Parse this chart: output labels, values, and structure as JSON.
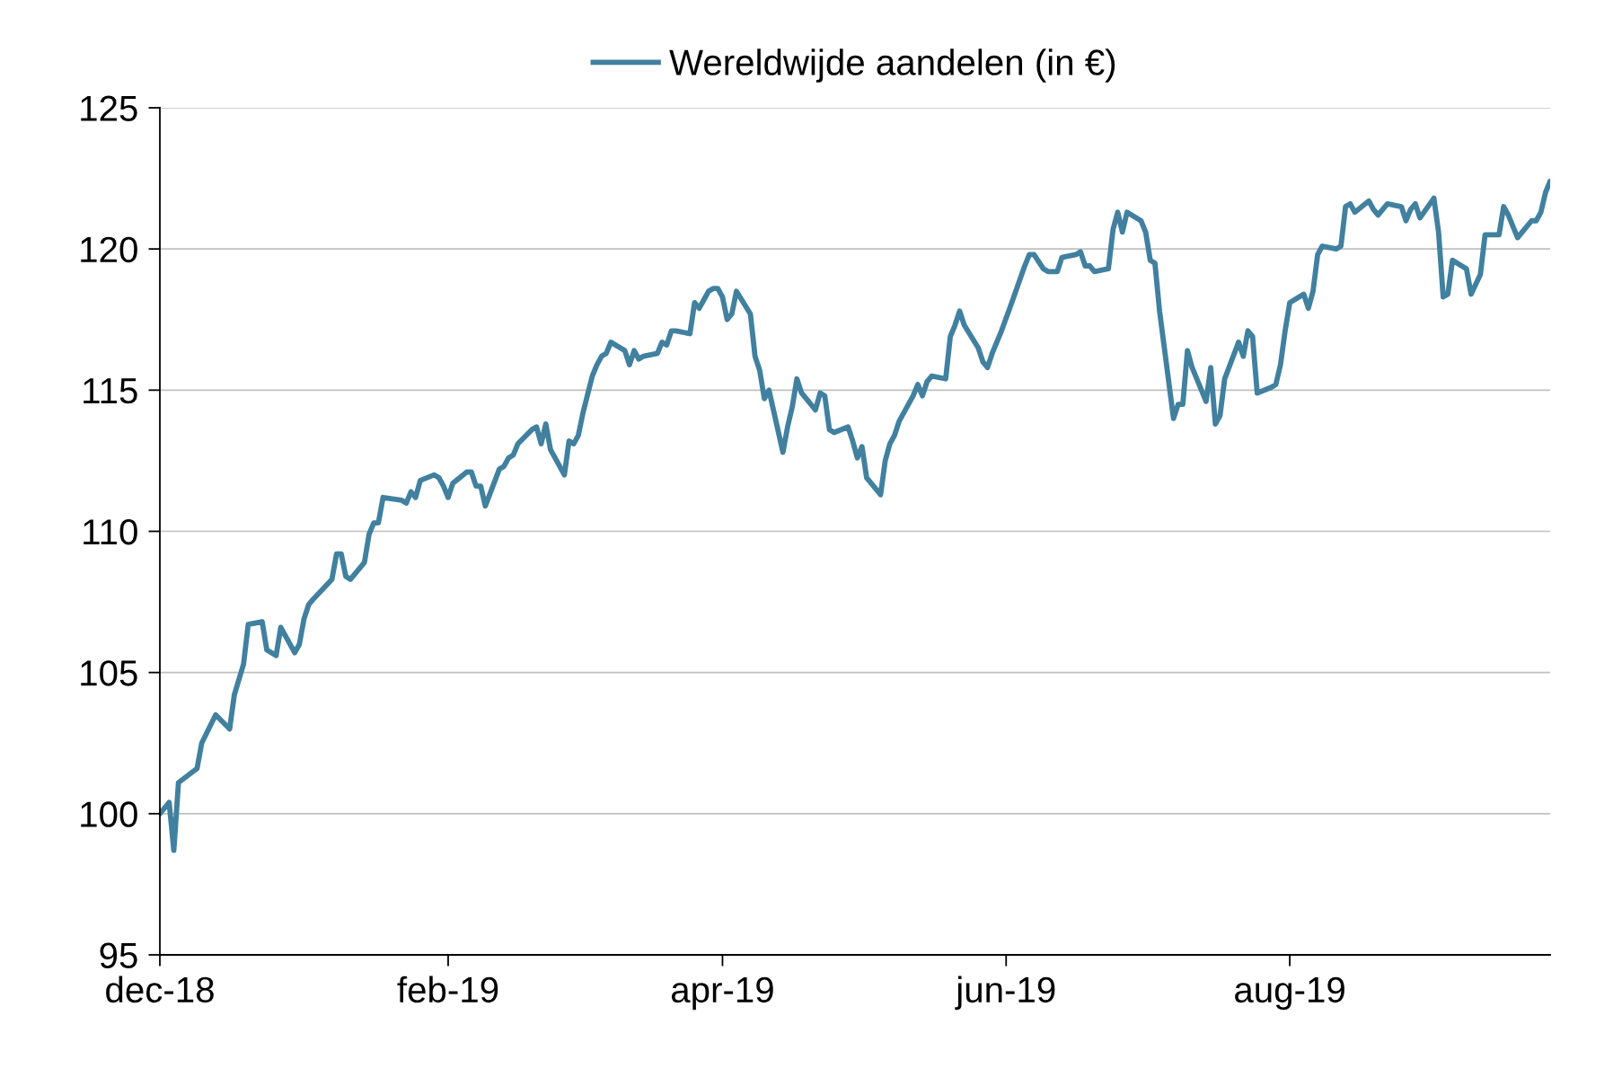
{
  "chart_data": {
    "type": "line",
    "legend": "top",
    "grid": "y",
    "marker": "none",
    "line_style": "solid",
    "xlim": [
      "2018-12-01",
      "2019-09-26"
    ],
    "ylim": [
      95,
      125
    ],
    "yticks": [
      95,
      100,
      105,
      110,
      115,
      120,
      125
    ],
    "xticks": [
      {
        "value": "2018-12-01",
        "label": "dec-18"
      },
      {
        "value": "2019-02-01",
        "label": "feb-19"
      },
      {
        "value": "2019-04-01",
        "label": "apr-19"
      },
      {
        "value": "2019-06-01",
        "label": "jun-19"
      },
      {
        "value": "2019-08-01",
        "label": "aug-19"
      }
    ],
    "x": [
      "2018-12-01",
      "2018-12-03",
      "2018-12-04",
      "2018-12-05",
      "2018-12-09",
      "2018-12-10",
      "2018-12-13",
      "2018-12-16",
      "2018-12-17",
      "2018-12-19",
      "2018-12-20",
      "2018-12-23",
      "2018-12-24",
      "2018-12-26",
      "2018-12-27",
      "2018-12-30",
      "2018-12-31",
      "2019-01-01",
      "2019-01-02",
      "2019-01-03",
      "2019-01-07",
      "2019-01-08",
      "2019-01-09",
      "2019-01-10",
      "2019-01-11",
      "2019-01-14",
      "2019-01-15",
      "2019-01-16",
      "2019-01-17",
      "2019-01-18",
      "2019-01-22",
      "2019-01-23",
      "2019-01-24",
      "2019-01-25",
      "2019-01-26",
      "2019-01-29",
      "2019-01-30",
      "2019-01-31",
      "2019-02-01",
      "2019-02-02",
      "2019-02-05",
      "2019-02-06",
      "2019-02-07",
      "2019-02-08",
      "2019-02-09",
      "2019-02-12",
      "2019-02-13",
      "2019-02-14",
      "2019-02-15",
      "2019-02-16",
      "2019-02-19",
      "2019-02-20",
      "2019-02-21",
      "2019-02-22",
      "2019-02-23",
      "2019-02-26",
      "2019-02-27",
      "2019-02-28",
      "2019-03-01",
      "2019-03-02",
      "2019-03-04",
      "2019-03-05",
      "2019-03-06",
      "2019-03-07",
      "2019-03-08",
      "2019-03-11",
      "2019-03-12",
      "2019-03-13",
      "2019-03-14",
      "2019-03-15",
      "2019-03-18",
      "2019-03-19",
      "2019-03-20",
      "2019-03-21",
      "2019-03-22",
      "2019-03-25",
      "2019-03-26",
      "2019-03-27",
      "2019-03-28",
      "2019-03-29",
      "2019-03-30",
      "2019-03-31",
      "2019-04-01",
      "2019-04-02",
      "2019-04-03",
      "2019-04-04",
      "2019-04-07",
      "2019-04-08",
      "2019-04-09",
      "2019-04-10",
      "2019-04-11",
      "2019-04-14",
      "2019-04-15",
      "2019-04-16",
      "2019-04-17",
      "2019-04-18",
      "2019-04-21",
      "2019-04-22",
      "2019-04-23",
      "2019-04-24",
      "2019-04-25",
      "2019-04-28",
      "2019-04-29",
      "2019-04-30",
      "2019-05-01",
      "2019-05-02",
      "2019-05-05",
      "2019-05-06",
      "2019-05-07",
      "2019-05-08",
      "2019-05-09",
      "2019-05-12",
      "2019-05-13",
      "2019-05-14",
      "2019-05-15",
      "2019-05-16",
      "2019-05-19",
      "2019-05-20",
      "2019-05-21",
      "2019-05-22",
      "2019-05-23",
      "2019-05-26",
      "2019-05-27",
      "2019-05-28",
      "2019-05-29",
      "2019-05-30",
      "2019-05-31",
      "2019-06-02",
      "2019-06-05",
      "2019-06-06",
      "2019-06-07",
      "2019-06-09",
      "2019-06-10",
      "2019-06-12",
      "2019-06-13",
      "2019-06-16",
      "2019-06-17",
      "2019-06-18",
      "2019-06-19",
      "2019-06-20",
      "2019-06-23",
      "2019-06-24",
      "2019-06-25",
      "2019-06-26",
      "2019-06-27",
      "2019-06-30",
      "2019-07-01",
      "2019-07-02",
      "2019-07-03",
      "2019-07-04",
      "2019-07-07",
      "2019-07-08",
      "2019-07-09",
      "2019-07-10",
      "2019-07-11",
      "2019-07-14",
      "2019-07-15",
      "2019-07-16",
      "2019-07-17",
      "2019-07-18",
      "2019-07-21",
      "2019-07-22",
      "2019-07-23",
      "2019-07-24",
      "2019-07-25",
      "2019-07-28",
      "2019-07-29",
      "2019-07-30",
      "2019-07-31",
      "2019-08-01",
      "2019-08-02",
      "2019-08-04",
      "2019-08-05",
      "2019-08-06",
      "2019-08-07",
      "2019-08-08",
      "2019-08-11",
      "2019-08-12",
      "2019-08-13",
      "2019-08-14",
      "2019-08-15",
      "2019-08-18",
      "2019-08-19",
      "2019-08-20",
      "2019-08-21",
      "2019-08-22",
      "2019-08-25",
      "2019-08-26",
      "2019-08-27",
      "2019-08-28",
      "2019-08-29",
      "2019-09-01",
      "2019-09-02",
      "2019-09-03",
      "2019-09-04",
      "2019-09-05",
      "2019-09-08",
      "2019-09-09",
      "2019-09-11",
      "2019-09-12",
      "2019-09-15",
      "2019-09-16",
      "2019-09-17",
      "2019-09-19",
      "2019-09-22",
      "2019-09-23",
      "2019-09-24",
      "2019-09-25",
      "2019-09-26"
    ],
    "series": [
      {
        "name": "Wereldwijde aandelen (in €)",
        "color": "#41809f",
        "values": [
          100.0,
          100.4,
          98.7,
          101.1,
          101.6,
          102.5,
          103.5,
          103.0,
          104.2,
          105.3,
          106.7,
          106.8,
          105.8,
          105.6,
          106.6,
          105.7,
          106.0,
          106.9,
          107.4,
          107.6,
          108.3,
          109.2,
          109.2,
          108.4,
          108.3,
          108.9,
          109.9,
          110.3,
          110.3,
          111.2,
          111.1,
          111.0,
          111.4,
          111.2,
          111.8,
          112.0,
          111.9,
          111.6,
          111.2,
          111.7,
          112.1,
          112.1,
          111.6,
          111.6,
          110.9,
          112.2,
          112.3,
          112.6,
          112.7,
          113.1,
          113.6,
          113.7,
          113.1,
          113.8,
          112.9,
          112.0,
          113.2,
          113.1,
          113.4,
          114.2,
          115.5,
          115.9,
          116.2,
          116.3,
          116.7,
          116.4,
          115.9,
          116.4,
          116.1,
          116.2,
          116.3,
          116.7,
          116.6,
          117.1,
          117.1,
          117.0,
          118.1,
          117.9,
          118.2,
          118.5,
          118.6,
          118.6,
          118.3,
          117.5,
          117.7,
          118.5,
          117.7,
          116.2,
          115.7,
          114.7,
          115.0,
          112.8,
          113.7,
          114.4,
          115.4,
          114.9,
          114.3,
          114.9,
          114.8,
          113.6,
          113.5,
          113.7,
          113.2,
          112.6,
          113.0,
          111.9,
          111.3,
          112.5,
          113.1,
          113.4,
          113.9,
          114.8,
          115.2,
          114.8,
          115.3,
          115.5,
          115.4,
          116.9,
          117.3,
          117.8,
          117.3,
          116.5,
          116.0,
          115.8,
          116.3,
          116.7,
          117.1,
          118.0,
          119.4,
          119.8,
          119.8,
          119.3,
          119.2,
          119.2,
          119.7,
          119.8,
          119.9,
          119.4,
          119.4,
          119.2,
          119.3,
          120.7,
          121.3,
          120.6,
          121.3,
          121.0,
          120.6,
          119.6,
          119.5,
          117.8,
          114.0,
          114.5,
          114.5,
          116.4,
          115.8,
          114.6,
          115.8,
          113.8,
          114.1,
          115.4,
          116.7,
          116.2,
          117.1,
          116.9,
          114.9,
          115.1,
          115.2,
          115.9,
          117.1,
          118.1,
          118.2,
          118.4,
          117.9,
          118.5,
          119.8,
          120.1,
          120.0,
          120.1,
          121.5,
          121.6,
          121.3,
          121.7,
          121.4,
          121.2,
          121.4,
          121.6,
          121.5,
          121.0,
          121.4,
          121.6,
          121.1,
          121.8,
          120.6,
          118.3,
          118.4,
          119.6,
          119.3,
          118.4,
          119.1,
          120.5,
          120.5,
          121.5,
          121.2,
          120.4,
          121.0,
          121.0,
          121.3,
          122.0,
          122.4
        ]
      }
    ]
  }
}
